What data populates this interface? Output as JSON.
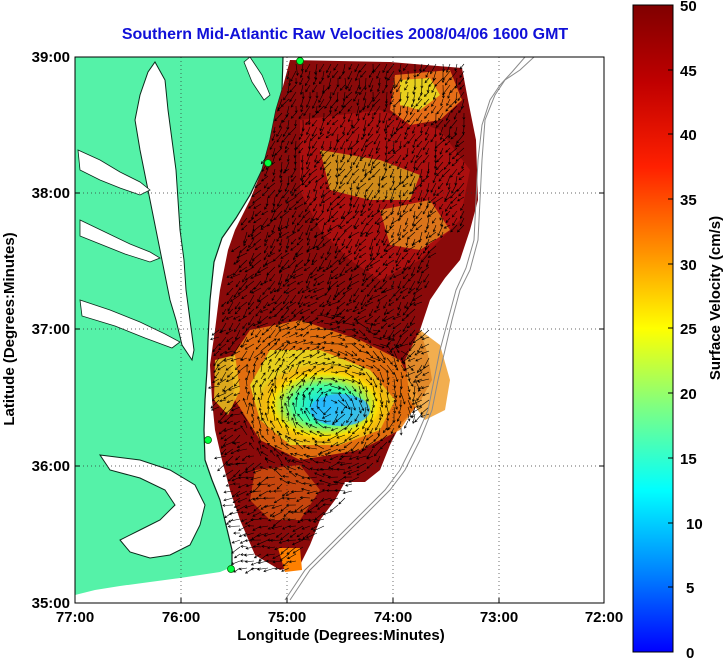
{
  "title": "Southern Mid-Atlantic Raw Velocities 2008/04/06 1600 GMT",
  "xlabel": "Longitude (Degrees:Minutes)",
  "ylabel": "Latitude (Degrees:Minutes)",
  "colorbar_label": "Surface Velocity (cm/s)",
  "x_ticks": [
    "77:00",
    "76:00",
    "75:00",
    "74:00",
    "73:00",
    "72:00"
  ],
  "y_ticks": [
    "39:00",
    "38:00",
    "37:00",
    "36:00",
    "35:00"
  ],
  "colorbar_ticks": [
    "50",
    "45",
    "40",
    "35",
    "30",
    "25",
    "20",
    "15",
    "10",
    "5",
    "0"
  ],
  "colors": {
    "land": "#55f2a8",
    "coast_line": "#0a2a1a",
    "title": "#1010d8",
    "grid": "#333333"
  },
  "map": {
    "lon_range": [
      -77,
      -72
    ],
    "lat_range": [
      35,
      39
    ],
    "velocity_range_cm_s": [
      0,
      50
    ]
  }
}
